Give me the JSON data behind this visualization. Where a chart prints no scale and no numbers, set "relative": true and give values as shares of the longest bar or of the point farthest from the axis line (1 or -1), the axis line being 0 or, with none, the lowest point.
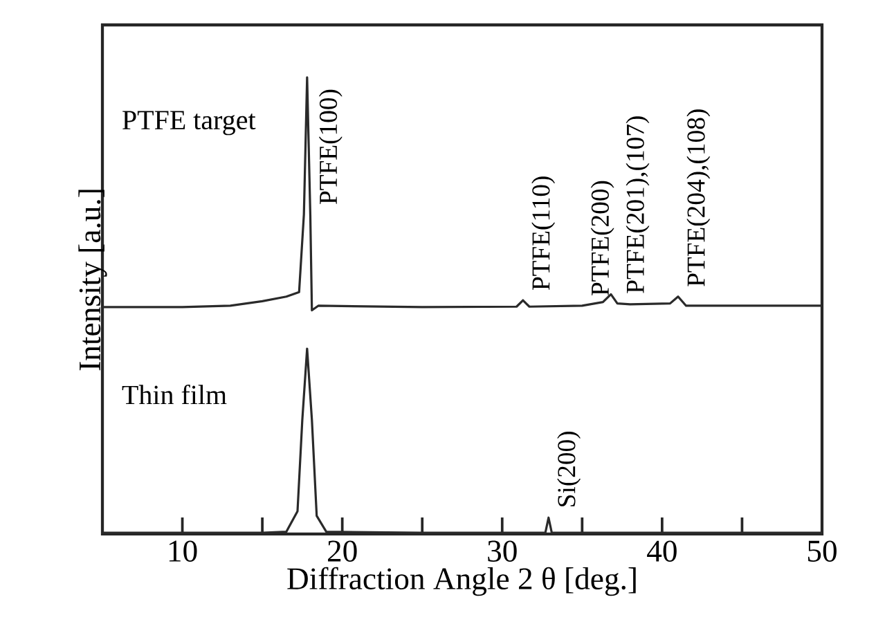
{
  "chart_data": {
    "type": "line",
    "relative": true,
    "xlabel": "Diffraction Angle 2 θ  [deg.]",
    "ylabel": "Intensity [a.u.]",
    "xlim": [
      5,
      50
    ],
    "xticks": [
      {
        "value": 5,
        "label": null
      },
      10,
      {
        "value": 15,
        "label": null
      },
      20,
      {
        "value": 25,
        "label": null
      },
      30,
      {
        "value": 35,
        "label": null
      },
      40,
      {
        "value": 45,
        "label": null
      },
      50
    ],
    "x": [
      5,
      10,
      13,
      15,
      16.5,
      17.3,
      17.6,
      17.8,
      18.0,
      18.1,
      18.5,
      25,
      30.9,
      31.3,
      31.7,
      35,
      36.3,
      36.8,
      37.2,
      38,
      40.5,
      41.0,
      41.5,
      45,
      50
    ],
    "series": [
      {
        "name": "PTFE target",
        "color": "#2a2a2a",
        "values": [
          0.497,
          0.497,
          0.5,
          0.51,
          0.52,
          0.53,
          0.7,
          1.0,
          0.7,
          0.49,
          0.5,
          0.497,
          0.498,
          0.512,
          0.498,
          0.5,
          0.508,
          0.525,
          0.505,
          0.503,
          0.505,
          0.52,
          0.5,
          0.5,
          0.5
        ]
      },
      {
        "name": "Thin film",
        "color": "#2a2a2a",
        "x": [
          5,
          15,
          16.5,
          17.2,
          17.5,
          17.8,
          18.1,
          18.4,
          19,
          25,
          32.7,
          32.9,
          33.1,
          40,
          50
        ],
        "values": [
          0.003,
          0.003,
          0.005,
          0.05,
          0.25,
          0.406,
          0.25,
          0.04,
          0.005,
          0.003,
          0.003,
          0.036,
          0.003,
          0.003,
          0.003
        ]
      }
    ],
    "annotations": [
      {
        "text": "PTFE(100)",
        "x": 18.0,
        "y": 0.7
      },
      {
        "text": "PTFE(110)",
        "x": 31.3,
        "y": 0.512
      },
      {
        "text": "PTFE(200)",
        "x": 35,
        "y": 0.5
      },
      {
        "text": "PTFE(201),(107)",
        "x": 37.2,
        "y": 0.505
      },
      {
        "text": "PTFE(204),(108)",
        "x": 41.0,
        "y": 0.52
      },
      {
        "text": "Si(200)",
        "x": 32.9,
        "y": 0.036
      }
    ],
    "grid": false,
    "legend": false,
    "marker": "none",
    "line_style": "solid"
  }
}
